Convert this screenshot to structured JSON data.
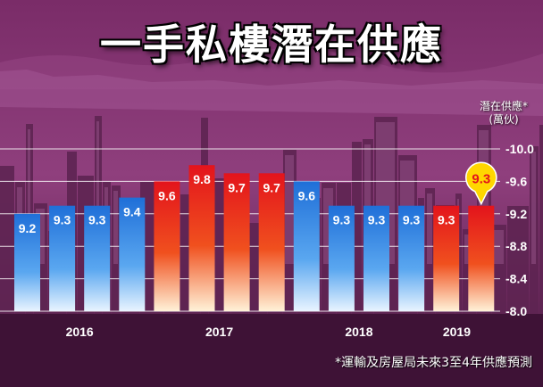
{
  "title": "一手私樓潛在供應",
  "footnote": "*運輸及房屋局未來3至4年供應預測",
  "colors": {
    "background_purple": "#5a1f4e",
    "blue_bar": "#2f86e0",
    "red_bar": "#e8281e",
    "highlight_callout": "#ffd600"
  },
  "chart_data": {
    "type": "bar",
    "title": "一手私樓潛在供應",
    "ylabel_lines": [
      "潛在供應*",
      "(萬伙)"
    ],
    "ylim": [
      8.0,
      10.0
    ],
    "yticks": [
      "10.0",
      "9.6",
      "9.2",
      "8.8",
      "8.4",
      "8.0"
    ],
    "ytick_values": [
      10.0,
      9.6,
      9.2,
      8.8,
      8.4,
      8.0
    ],
    "grid": true,
    "x_group_labels": [
      "2016",
      "2017",
      "2018",
      "2019"
    ],
    "values": [
      9.2,
      9.3,
      9.3,
      9.4,
      9.6,
      9.8,
      9.7,
      9.7,
      9.6,
      9.3,
      9.3,
      9.3,
      9.3,
      9.3
    ],
    "value_labels": [
      "9.2",
      "9.3",
      "9.3",
      "9.4",
      "9.6",
      "9.8",
      "9.7",
      "9.7",
      "9.6",
      "9.3",
      "9.3",
      "9.3",
      "9.3",
      "9.3"
    ],
    "bar_colors": [
      "blue",
      "blue",
      "blue",
      "blue",
      "red",
      "red",
      "red",
      "red",
      "blue",
      "blue",
      "blue",
      "blue",
      "red",
      "red"
    ],
    "highlighted_bar": 13,
    "footnote": "*運輸及房屋局未來3至4年供應預測"
  }
}
